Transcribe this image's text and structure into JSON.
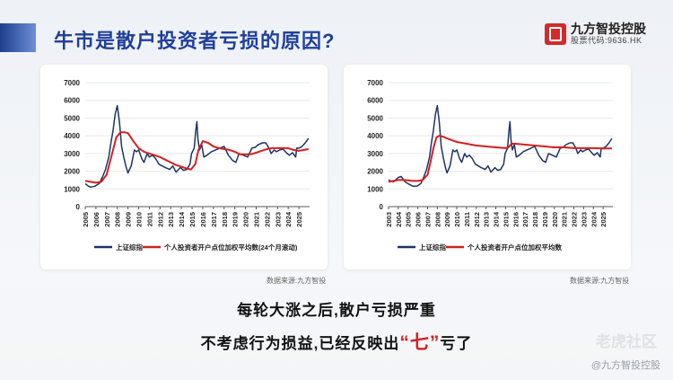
{
  "header": {
    "title": "牛市是散户投资者亏损的原因?"
  },
  "logo": {
    "name": "九方智投控股",
    "code": "股票代码:9636.HK"
  },
  "sources": [
    "数据来源:九方智投",
    "数据来源:九方智投"
  ],
  "summary": {
    "line1": "每轮大涨之后,散户亏损严重",
    "line2_pre": "不考虑行为损益,已经反映出",
    "line2_highlight": "“七”",
    "line2_post": "亏了"
  },
  "watermark": {
    "main": "老虎社区",
    "sub": "@九方智投控股"
  },
  "colors": {
    "index_line": "#1d3466",
    "investor_line": "#d42020",
    "title": "#1f3f9a"
  },
  "chart_data": [
    {
      "type": "line",
      "ylim": [
        0,
        7000
      ],
      "yticks": [
        0,
        1000,
        2000,
        3000,
        4000,
        5000,
        6000,
        7000
      ],
      "xlim": [
        2005,
        2026
      ],
      "xticks": [
        "2005",
        "2006",
        "2007",
        "2008",
        "2009",
        "2010",
        "2011",
        "2012",
        "2013",
        "2014",
        "2015",
        "2016",
        "2017",
        "2018",
        "2019",
        "2020",
        "2021",
        "2022",
        "2023",
        "2024",
        "2025"
      ],
      "grid": true,
      "legend": "bottom",
      "series": [
        {
          "name": "上证综指",
          "color": "#1d3466",
          "x": [
            2005.0,
            2005.3,
            2005.5,
            2005.9,
            2006.3,
            2006.6,
            2006.9,
            2007.2,
            2007.4,
            2007.6,
            2007.8,
            2008.0,
            2008.2,
            2008.4,
            2008.6,
            2008.8,
            2009.0,
            2009.3,
            2009.6,
            2009.8,
            2010.0,
            2010.3,
            2010.5,
            2010.8,
            2011.0,
            2011.3,
            2011.6,
            2011.9,
            2012.2,
            2012.5,
            2012.9,
            2013.2,
            2013.5,
            2013.9,
            2014.2,
            2014.5,
            2014.8,
            2014.95,
            2015.2,
            2015.35,
            2015.45,
            2015.55,
            2015.7,
            2015.9,
            2016.1,
            2016.4,
            2016.8,
            2017.2,
            2017.6,
            2018.0,
            2018.4,
            2018.8,
            2019.1,
            2019.4,
            2019.8,
            2020.2,
            2020.6,
            2020.9,
            2021.2,
            2021.6,
            2021.9,
            2022.2,
            2022.4,
            2022.7,
            2022.9,
            2023.2,
            2023.5,
            2023.9,
            2024.1,
            2024.4,
            2024.7,
            2024.8,
            2025.0,
            2025.3,
            2025.6,
            2025.9
          ],
          "y": [
            1300,
            1150,
            1100,
            1150,
            1300,
            1650,
            2100,
            2800,
            3600,
            4300,
            5200,
            5700,
            4800,
            3400,
            2800,
            2300,
            1900,
            2300,
            3200,
            3100,
            3200,
            2700,
            2500,
            3000,
            2800,
            2900,
            2700,
            2400,
            2300,
            2200,
            2100,
            2300,
            1950,
            2200,
            2050,
            2100,
            2400,
            3000,
            3300,
            4300,
            4800,
            3800,
            3200,
            3500,
            2800,
            2900,
            3100,
            3200,
            3300,
            3400,
            2900,
            2600,
            2500,
            3000,
            2900,
            2800,
            3300,
            3350,
            3500,
            3600,
            3600,
            3300,
            3000,
            3200,
            3100,
            3200,
            3250,
            3000,
            2900,
            3050,
            2800,
            3300,
            3300,
            3400,
            3600,
            3850
          ]
        },
        {
          "name": "个人投资者开户点位加权平均数(24个月滚动)",
          "color": "#d42020",
          "x": [
            2005.0,
            2005.5,
            2006.0,
            2006.5,
            2007.0,
            2007.3,
            2007.6,
            2007.9,
            2008.3,
            2008.7,
            2009.0,
            2009.5,
            2010.0,
            2010.5,
            2011.0,
            2011.5,
            2012.0,
            2012.5,
            2013.0,
            2013.5,
            2014.0,
            2014.5,
            2014.9,
            2015.3,
            2015.6,
            2016.0,
            2016.5,
            2017.0,
            2017.5,
            2018.0,
            2018.5,
            2019.0,
            2019.5,
            2020.0,
            2020.5,
            2021.0,
            2021.5,
            2022.0,
            2022.5,
            2023.0,
            2023.5,
            2024.0,
            2024.5,
            2025.0,
            2025.5,
            2025.9
          ],
          "y": [
            1450,
            1400,
            1350,
            1400,
            1800,
            2500,
            3200,
            3900,
            4200,
            4200,
            4150,
            3700,
            3300,
            3100,
            3000,
            2900,
            2800,
            2650,
            2500,
            2350,
            2250,
            2150,
            2100,
            2400,
            3200,
            3700,
            3600,
            3400,
            3300,
            3250,
            3200,
            3100,
            2950,
            2950,
            2950,
            3050,
            3150,
            3250,
            3300,
            3300,
            3300,
            3300,
            3200,
            3150,
            3200,
            3250
          ]
        }
      ]
    },
    {
      "type": "line",
      "ylim": [
        0,
        7000
      ],
      "yticks": [
        0,
        1000,
        2000,
        3000,
        4000,
        5000,
        6000,
        7000
      ],
      "xlim": [
        2003,
        2026
      ],
      "xticks": [
        "2003",
        "2004",
        "2005",
        "2006",
        "2007",
        "2008",
        "2009",
        "2010",
        "2011",
        "2012",
        "2013",
        "2014",
        "2015",
        "2016",
        "2017",
        "2018",
        "2019",
        "2020",
        "2021",
        "2022",
        "2023",
        "2024",
        "2025"
      ],
      "grid": true,
      "legend": "bottom",
      "series": [
        {
          "name": "上证综指",
          "color": "#1d3466",
          "x": [
            2003.0,
            2003.5,
            2004.0,
            2004.3,
            2004.7,
            2005.0,
            2005.5,
            2005.9,
            2006.3,
            2006.6,
            2006.9,
            2007.2,
            2007.4,
            2007.6,
            2007.8,
            2008.0,
            2008.2,
            2008.4,
            2008.6,
            2008.8,
            2009.0,
            2009.3,
            2009.6,
            2009.8,
            2010.0,
            2010.3,
            2010.5,
            2010.8,
            2011.0,
            2011.3,
            2011.6,
            2011.9,
            2012.2,
            2012.5,
            2012.9,
            2013.2,
            2013.5,
            2013.9,
            2014.2,
            2014.5,
            2014.8,
            2014.95,
            2015.2,
            2015.35,
            2015.45,
            2015.55,
            2015.7,
            2015.9,
            2016.1,
            2016.4,
            2016.8,
            2017.2,
            2017.6,
            2018.0,
            2018.4,
            2018.8,
            2019.1,
            2019.4,
            2019.8,
            2020.2,
            2020.6,
            2020.9,
            2021.2,
            2021.6,
            2021.9,
            2022.2,
            2022.4,
            2022.7,
            2022.9,
            2023.2,
            2023.5,
            2023.9,
            2024.1,
            2024.4,
            2024.7,
            2024.8,
            2025.0,
            2025.3,
            2025.6,
            2025.9
          ],
          "y": [
            1500,
            1400,
            1650,
            1700,
            1400,
            1300,
            1150,
            1150,
            1300,
            1650,
            2100,
            2800,
            3600,
            4300,
            5200,
            5700,
            4800,
            3400,
            2800,
            2300,
            1900,
            2300,
            3200,
            3100,
            3200,
            2700,
            2500,
            3000,
            2800,
            2900,
            2700,
            2400,
            2300,
            2200,
            2100,
            2300,
            1950,
            2200,
            2050,
            2100,
            2400,
            3000,
            3300,
            4300,
            4800,
            3800,
            3200,
            3500,
            2800,
            2900,
            3100,
            3200,
            3300,
            3400,
            2900,
            2600,
            2500,
            3000,
            2900,
            2800,
            3300,
            3350,
            3500,
            3600,
            3600,
            3300,
            3000,
            3200,
            3100,
            3200,
            3250,
            3000,
            2900,
            3050,
            2800,
            3300,
            3300,
            3400,
            3600,
            3850
          ]
        },
        {
          "name": "个人投资者开户点位加权平均数",
          "color": "#d42020",
          "x": [
            2003.0,
            2003.5,
            2004.0,
            2004.5,
            2005.0,
            2005.5,
            2006.0,
            2006.5,
            2007.0,
            2007.3,
            2007.6,
            2007.9,
            2008.2,
            2008.6,
            2009.0,
            2009.5,
            2010.0,
            2011.0,
            2012.0,
            2013.0,
            2014.0,
            2015.0,
            2015.3,
            2015.6,
            2016.0,
            2017.0,
            2018.0,
            2019.0,
            2020.0,
            2021.0,
            2022.0,
            2023.0,
            2024.0,
            2025.0,
            2025.9
          ],
          "y": [
            1400,
            1450,
            1500,
            1500,
            1480,
            1450,
            1450,
            1500,
            1800,
            2500,
            3300,
            3900,
            4000,
            3950,
            3850,
            3750,
            3650,
            3550,
            3450,
            3400,
            3350,
            3300,
            3350,
            3550,
            3550,
            3500,
            3450,
            3400,
            3350,
            3350,
            3300,
            3300,
            3300,
            3280,
            3280
          ]
        }
      ]
    }
  ]
}
